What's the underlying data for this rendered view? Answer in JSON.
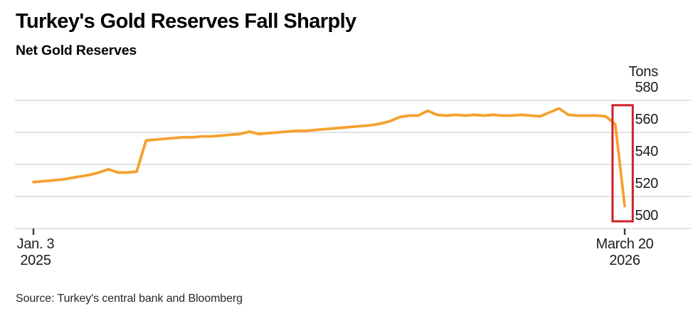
{
  "chart_data": {
    "type": "line",
    "title": "Turkey's Gold Reserves Fall Sharply",
    "subtitle": "Net Gold Reserves",
    "unit": "Tons",
    "source": "Source: Turkey's central bank and Bloomberg",
    "x_axis": {
      "start_lines": [
        "Jan. 3",
        "2025"
      ],
      "end_lines": [
        "March 20",
        "2026"
      ]
    },
    "y_ticks": [
      580,
      560,
      540,
      520,
      500
    ],
    "ylim": [
      497,
      584
    ],
    "grid": "horizontal",
    "axis_side": "right",
    "legend": "none",
    "series": [
      {
        "name": "Net Gold Reserves",
        "values": [
          529,
          529.5,
          530,
          530.5,
          531.5,
          532.5,
          533.5,
          535,
          537,
          535,
          535,
          535.5,
          555,
          555.5,
          556,
          556.5,
          557,
          557,
          557.5,
          557.5,
          558,
          558.5,
          559,
          560.5,
          559,
          559.5,
          560,
          560.5,
          561,
          561,
          561.5,
          562,
          562.5,
          563,
          563.5,
          564,
          564.5,
          565.5,
          567,
          569.5,
          570.5,
          570.5,
          573.5,
          571,
          570.5,
          571,
          570.5,
          571,
          570.5,
          571,
          570.5,
          570.5,
          571,
          570.5,
          570,
          572.5,
          575,
          571,
          570.5,
          570.5,
          570.5,
          570,
          565,
          514
        ]
      }
    ],
    "annotation": {
      "type": "highlight-rect",
      "x_from_point": 61.7,
      "x_to_point": 63.85,
      "value_min": 504.5,
      "value_max": 577
    },
    "colors": {
      "line": "#f5a12e",
      "grid": "#d9d9d9",
      "highlight": "#cb2229",
      "axis_tick": "#3d3d3d",
      "text": "#000000"
    }
  }
}
